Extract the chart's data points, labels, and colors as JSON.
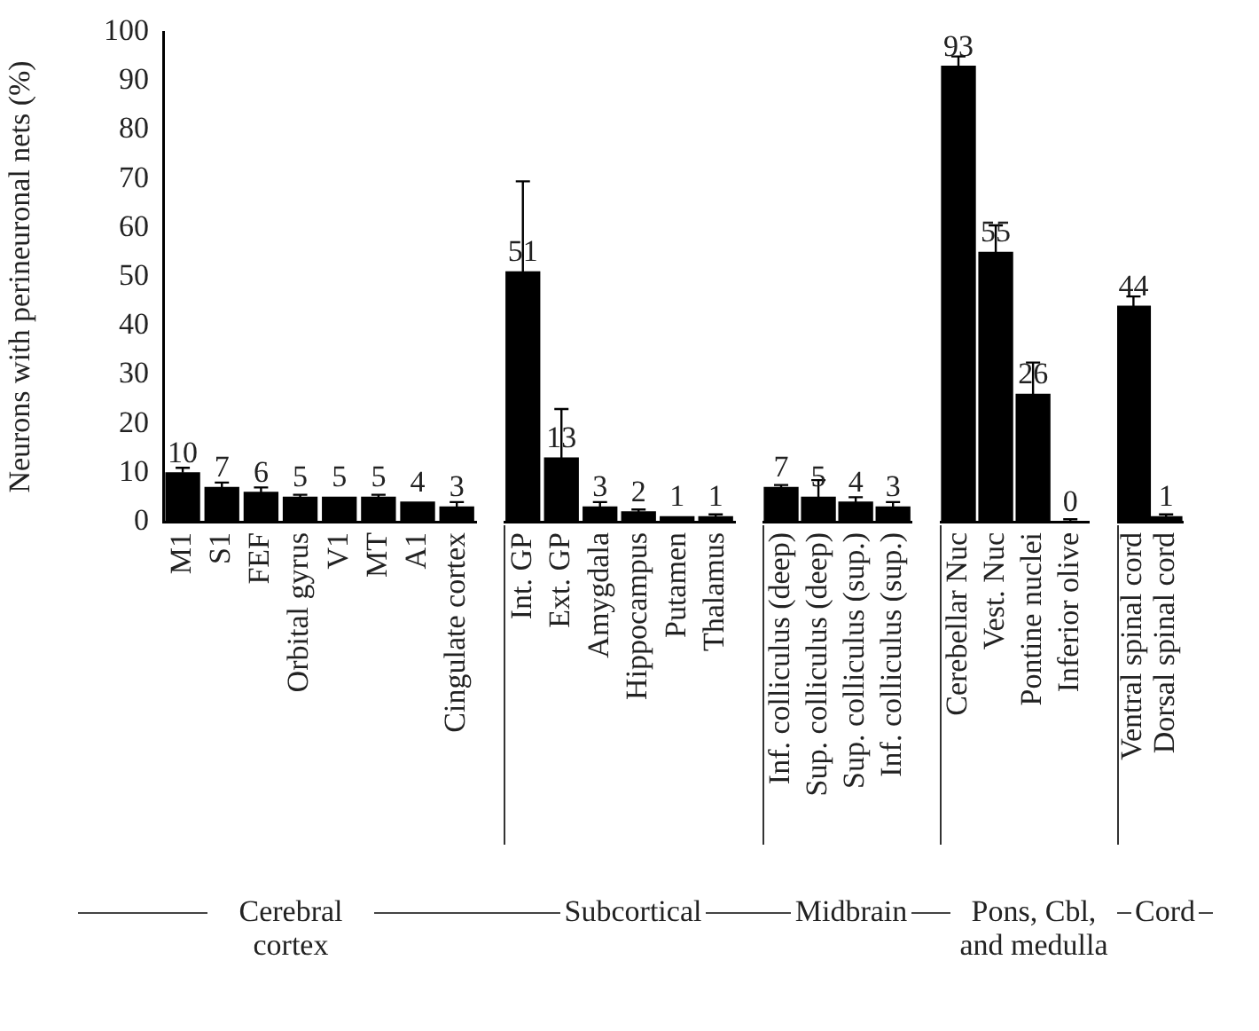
{
  "chart_data": [
    {
      "type": "bar",
      "ylabel": "Neurons with perineuronal nets (%)",
      "xlabel": "Cerebral cortex",
      "categories": [
        "M1",
        "S1",
        "FEF",
        "Orbital gyrus",
        "V1",
        "MT",
        "A1",
        "Cingulate cortex"
      ],
      "values": [
        10,
        7,
        6,
        5,
        5,
        5,
        4,
        3
      ],
      "errors": [
        [
          10,
          11
        ],
        [
          7,
          8
        ],
        [
          6,
          7
        ],
        [
          5,
          5.5
        ],
        null,
        [
          5,
          5.5
        ],
        null,
        [
          3,
          4
        ]
      ],
      "color": "#000000",
      "ylim": [
        0,
        100
      ],
      "yticks": [
        0,
        10,
        20,
        30,
        40,
        50,
        60,
        70,
        80,
        90,
        100
      ],
      "data_labels": true
    },
    {
      "type": "bar",
      "xlabel": "Subcortical",
      "categories": [
        "Int. GP",
        "Ext. GP",
        "Amygdala",
        "Hippocampus",
        "Putamen",
        "Thalamus"
      ],
      "values": [
        51,
        13,
        3,
        2,
        1,
        1
      ],
      "errors": [
        [
          51,
          69.5
        ],
        [
          13,
          23
        ],
        [
          3,
          4
        ],
        [
          2,
          2.5
        ],
        null,
        [
          1,
          1.5
        ]
      ],
      "color": "#000000",
      "ylim": [
        0,
        100
      ],
      "yticks": [
        0,
        10,
        20,
        30,
        40,
        50,
        60,
        70,
        80,
        90,
        100
      ],
      "data_labels": true,
      "tick_labels": "x"
    },
    {
      "type": "bar",
      "xlabel": "Midbrain",
      "categories": [
        "Inf. colliculus (deep)",
        "Sup. colliculus (deep)",
        "Sup. colliculus (sup.)",
        "Inf. colliculus (sup.)"
      ],
      "values": [
        7,
        5,
        4,
        3
      ],
      "errors": [
        [
          7,
          7.5
        ],
        [
          5,
          8.5
        ],
        [
          4,
          5
        ],
        [
          3,
          4
        ]
      ],
      "color": "#000000",
      "ylim": [
        0,
        100
      ],
      "yticks": [
        0,
        10,
        20,
        30,
        40,
        50,
        60,
        70,
        80,
        90,
        100
      ],
      "data_labels": true,
      "tick_labels": "x"
    },
    {
      "type": "bar",
      "xlabel": "Pons, Cbl, and medulla",
      "categories": [
        "Cerebellar Nuc",
        "Vest. Nuc",
        "Pontine nuclei",
        "Inferior olive"
      ],
      "values": [
        93,
        55,
        26,
        0
      ],
      "errors": [
        [
          93,
          95
        ],
        [
          55,
          60.5
        ],
        [
          26,
          32.5
        ],
        [
          0,
          0.5
        ]
      ],
      "color": "#000000",
      "ylim": [
        0,
        100
      ],
      "yticks": [
        0,
        10,
        20,
        30,
        40,
        50,
        60,
        70,
        80,
        90,
        100
      ],
      "data_labels": true,
      "tick_labels": "x"
    },
    {
      "type": "bar",
      "xlabel": "Cord",
      "categories": [
        "Ventral spinal cord",
        "Dorsal spinal cord"
      ],
      "values": [
        44,
        1
      ],
      "errors": [
        [
          44,
          46
        ],
        [
          1,
          1.5
        ]
      ],
      "color": "#000000",
      "ylim": [
        0,
        100
      ],
      "yticks": [
        0,
        10,
        20,
        30,
        40,
        50,
        60,
        70,
        80,
        90,
        100
      ],
      "data_labels": true,
      "tick_labels": "x"
    }
  ]
}
